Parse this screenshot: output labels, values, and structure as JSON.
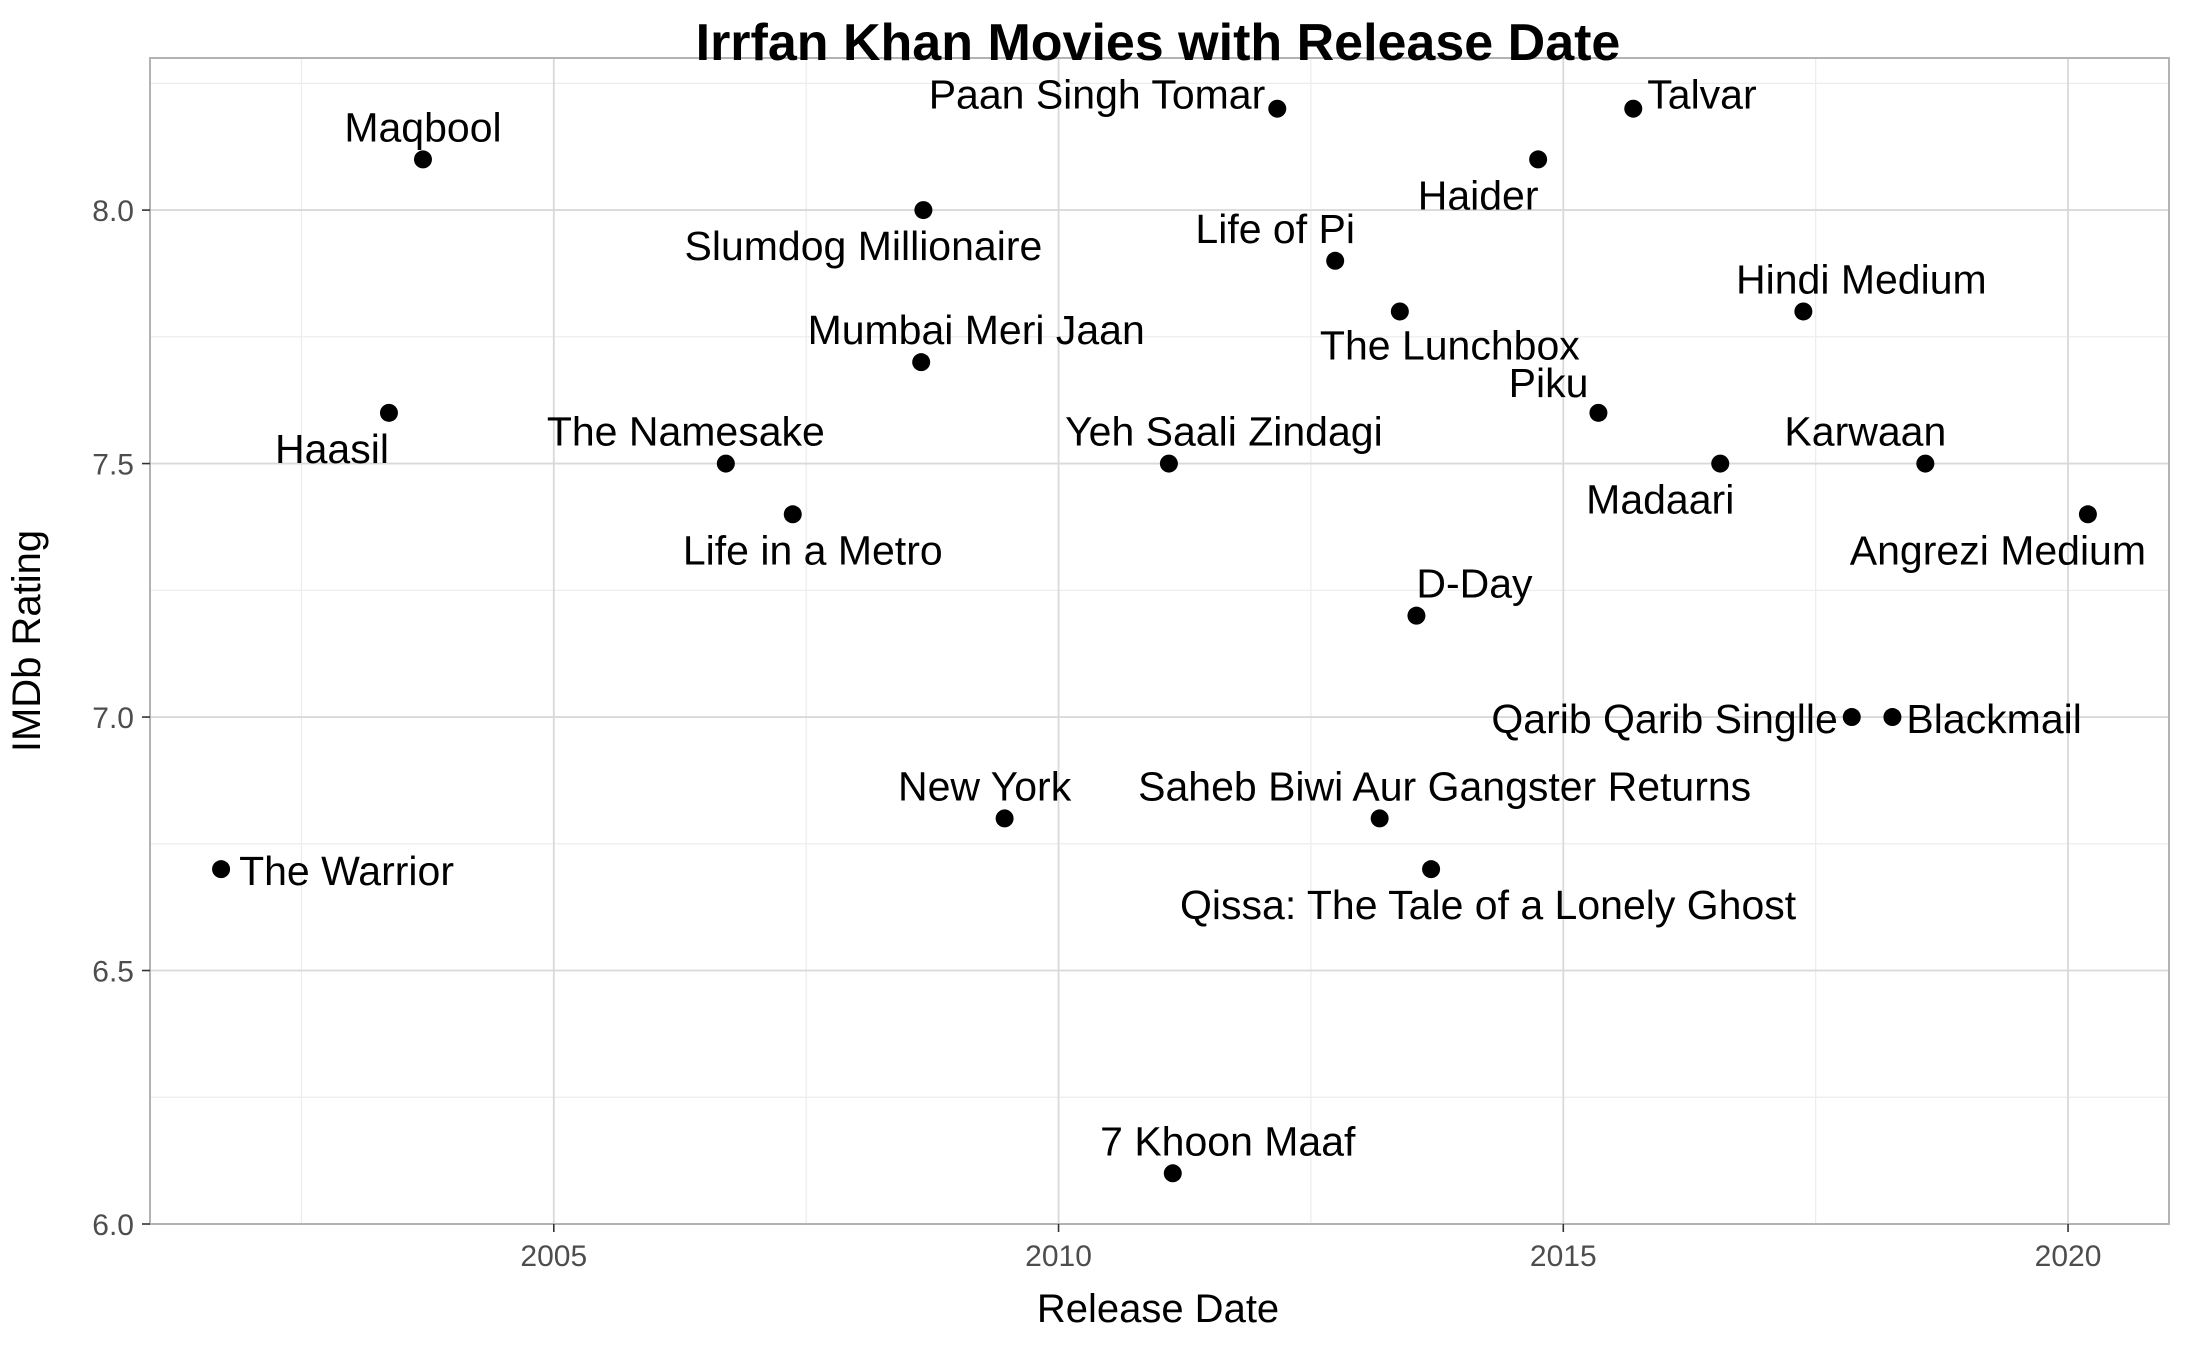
{
  "chart_data": {
    "type": "scatter",
    "title": "Irrfan Khan Movies with Release Date",
    "xlabel": "Release Date",
    "ylabel": "IMDb Rating",
    "xlim": [
      "2001-01-01",
      "2021-01-01"
    ],
    "ylim": [
      6.0,
      8.3
    ],
    "x_ticks": [
      "2005",
      "2010",
      "2015",
      "2020"
    ],
    "y_ticks": [
      "6.0",
      "6.5",
      "7.0",
      "7.5",
      "8.0"
    ],
    "grid": true,
    "point_color": "#000000",
    "points": [
      {
        "label": "The Warrior",
        "x": "2001-09-15",
        "y": 6.7
      },
      {
        "label": "Haasil",
        "x": "2003-05-15",
        "y": 7.6
      },
      {
        "label": "Maqbool",
        "x": "2003-09-15",
        "y": 8.1
      },
      {
        "label": "The Namesake",
        "x": "2006-09-15",
        "y": 7.5
      },
      {
        "label": "Life in a Metro",
        "x": "2007-05-15",
        "y": 7.4
      },
      {
        "label": "Slumdog Millionaire",
        "x": "2008-08-30",
        "y": 8.0
      },
      {
        "label": "Mumbai Meri Jaan",
        "x": "2008-08-22",
        "y": 7.7
      },
      {
        "label": "New York",
        "x": "2009-06-20",
        "y": 6.8
      },
      {
        "label": "Yeh Saali Zindagi",
        "x": "2011-02-04",
        "y": 7.5
      },
      {
        "label": "7 Khoon Maaf",
        "x": "2011-02-18",
        "y": 6.1
      },
      {
        "label": "Paan Singh Tomar",
        "x": "2012-03-02",
        "y": 8.2
      },
      {
        "label": "Life of Pi",
        "x": "2012-09-28",
        "y": 7.9
      },
      {
        "label": "Saheb Biwi Aur Gangster Returns",
        "x": "2013-03-08",
        "y": 6.8
      },
      {
        "label": "The Lunchbox",
        "x": "2013-05-20",
        "y": 7.8
      },
      {
        "label": "D-Day",
        "x": "2013-07-19",
        "y": 7.2
      },
      {
        "label": "Qissa: The Tale of a Lonely Ghost",
        "x": "2013-09-10",
        "y": 6.7
      },
      {
        "label": "Haider",
        "x": "2014-10-02",
        "y": 8.1
      },
      {
        "label": "Piku",
        "x": "2015-05-08",
        "y": 7.6
      },
      {
        "label": "Talvar",
        "x": "2015-09-11",
        "y": 8.2
      },
      {
        "label": "Madaari",
        "x": "2016-07-22",
        "y": 7.5
      },
      {
        "label": "Hindi Medium",
        "x": "2017-05-19",
        "y": 7.8
      },
      {
        "label": "Qarib Qarib Singlle",
        "x": "2017-11-10",
        "y": 7.0
      },
      {
        "label": "Blackmail",
        "x": "2018-04-06",
        "y": 7.0
      },
      {
        "label": "Karwaan",
        "x": "2018-08-03",
        "y": 7.5
      },
      {
        "label": "Angrezi Medium",
        "x": "2020-03-13",
        "y": 7.4
      }
    ]
  }
}
